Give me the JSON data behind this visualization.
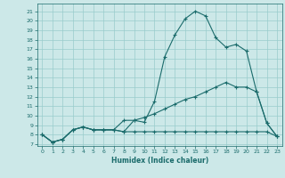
{
  "xlabel": "Humidex (Indice chaleur)",
  "background_color": "#cce8e8",
  "line_color": "#1a6b6b",
  "grid_color": "#99cccc",
  "xlim": [
    -0.5,
    23.5
  ],
  "ylim": [
    6.8,
    21.8
  ],
  "yticks": [
    7,
    8,
    9,
    10,
    11,
    12,
    13,
    14,
    15,
    16,
    17,
    18,
    19,
    20,
    21
  ],
  "xticks": [
    0,
    1,
    2,
    3,
    4,
    5,
    6,
    7,
    8,
    9,
    10,
    11,
    12,
    13,
    14,
    15,
    16,
    17,
    18,
    19,
    20,
    21,
    22,
    23
  ],
  "line1_x": [
    0,
    1,
    2,
    3,
    4,
    5,
    6,
    7,
    8,
    9,
    10,
    11,
    12,
    13,
    14,
    15,
    16,
    17,
    18,
    19,
    20,
    21,
    22,
    23
  ],
  "line1_y": [
    8.0,
    7.2,
    7.5,
    8.5,
    8.8,
    8.5,
    8.5,
    8.5,
    8.3,
    9.5,
    9.3,
    11.5,
    16.2,
    18.5,
    20.2,
    21.0,
    20.5,
    18.2,
    17.2,
    17.5,
    16.8,
    12.5,
    9.2,
    7.8
  ],
  "line2_x": [
    0,
    1,
    2,
    3,
    4,
    5,
    6,
    7,
    8,
    9,
    10,
    11,
    12,
    13,
    14,
    15,
    16,
    17,
    18,
    19,
    20,
    21,
    22,
    23
  ],
  "line2_y": [
    8.0,
    7.2,
    7.5,
    8.5,
    8.8,
    8.5,
    8.5,
    8.5,
    8.3,
    8.3,
    8.3,
    8.3,
    8.3,
    8.3,
    8.3,
    8.3,
    8.3,
    8.3,
    8.3,
    8.3,
    8.3,
    8.3,
    8.3,
    7.8
  ],
  "line3_x": [
    0,
    1,
    2,
    3,
    4,
    5,
    6,
    7,
    8,
    9,
    10,
    11,
    12,
    13,
    14,
    15,
    16,
    17,
    18,
    19,
    20,
    21,
    22,
    23
  ],
  "line3_y": [
    8.0,
    7.2,
    7.5,
    8.5,
    8.8,
    8.5,
    8.5,
    8.5,
    9.5,
    9.5,
    9.8,
    10.2,
    10.7,
    11.2,
    11.7,
    12.0,
    12.5,
    13.0,
    13.5,
    13.0,
    13.0,
    12.5,
    9.2,
    7.8
  ]
}
